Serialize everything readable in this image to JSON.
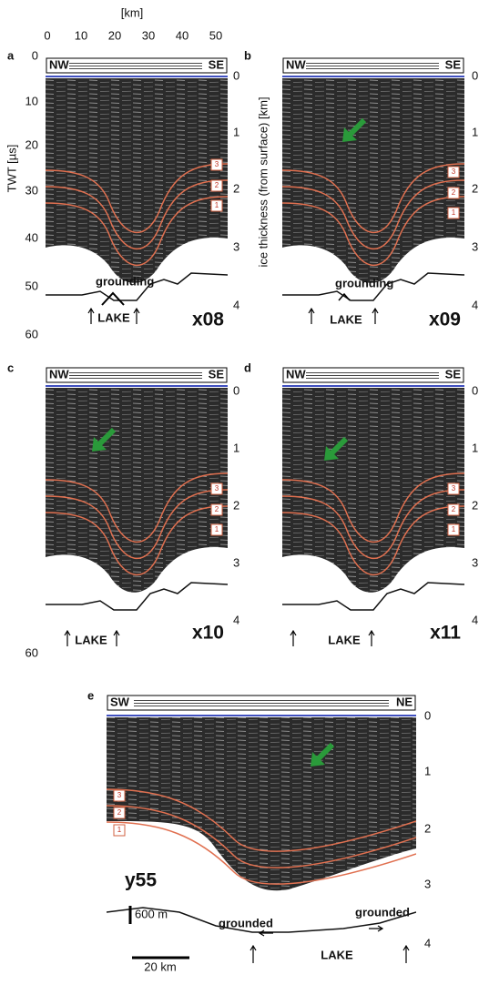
{
  "top_axis": {
    "label": "[km]",
    "ticks": [
      0,
      10,
      20,
      30,
      40,
      50
    ]
  },
  "left_axis": {
    "label": "TWT [µs]",
    "ticks": [
      0,
      10,
      20,
      30,
      40,
      50,
      60
    ]
  },
  "right_axis_label": "ice thickness (from surface) [km]",
  "panels": [
    {
      "letter": "a",
      "left": "NW",
      "right": "SE",
      "profile": "x08",
      "layers": [
        "3",
        "2",
        "1"
      ],
      "annotations": [
        "grounding",
        "LAKE"
      ],
      "depth_ticks": [
        0,
        1,
        2,
        3,
        4
      ]
    },
    {
      "letter": "b",
      "left": "NW",
      "right": "SE",
      "profile": "x09",
      "layers": [
        "3",
        "2",
        "1"
      ],
      "annotations": [
        "grounding",
        "LAKE"
      ],
      "depth_ticks": [
        0,
        1,
        2,
        3,
        4
      ]
    },
    {
      "letter": "c",
      "left": "NW",
      "right": "SE",
      "profile": "x10",
      "layers": [
        "3",
        "2",
        "1"
      ],
      "annotations": [
        "LAKE"
      ],
      "depth_ticks": [
        0,
        1,
        2,
        3,
        4
      ],
      "left_ticks": [
        60
      ]
    },
    {
      "letter": "d",
      "left": "NW",
      "right": "SE",
      "profile": "x11",
      "layers": [
        "3",
        "2",
        "1"
      ],
      "annotations": [
        "LAKE"
      ],
      "depth_ticks": [
        0,
        1,
        2,
        3,
        4
      ]
    },
    {
      "letter": "e",
      "left": "SW",
      "right": "NE",
      "profile": "y55",
      "layers": [
        "3",
        "2",
        "1"
      ],
      "annotations": [
        "grounded",
        "grounded",
        "LAKE"
      ],
      "depth_ticks": [
        0,
        1,
        2,
        3,
        4
      ],
      "scale_bars": [
        "600 m",
        "20 km"
      ]
    }
  ]
}
